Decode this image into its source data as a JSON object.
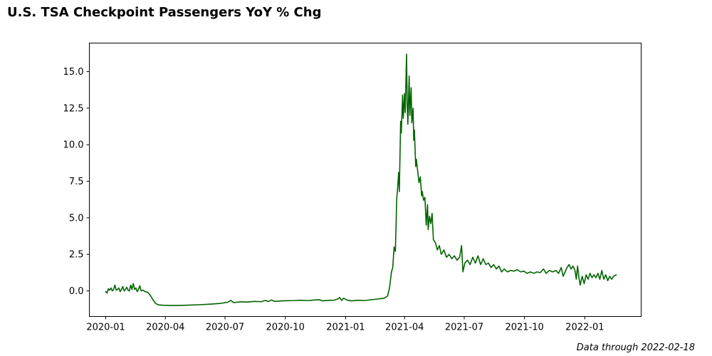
{
  "chart_data": {
    "type": "line",
    "title": "U.S. TSA Checkpoint Passengers YoY % Chg",
    "footnote": "Data through 2022-02-18",
    "xlabel": "",
    "ylabel": "",
    "x_range": [
      "2019-12-07",
      "2022-03-28"
    ],
    "ylim": [
      -1.75,
      16.95
    ],
    "x_ticks": [
      "2020-01",
      "2020-04",
      "2020-07",
      "2020-10",
      "2021-01",
      "2021-04",
      "2021-07",
      "2021-10",
      "2022-01"
    ],
    "y_ticks": [
      "0.0",
      "2.5",
      "5.0",
      "7.5",
      "10.0",
      "12.5",
      "15.0"
    ],
    "grid": false,
    "legend": "none",
    "line_color": "#006400",
    "series": [
      {
        "points": [
          [
            "2020-01-01",
            -0.05
          ],
          [
            "2020-01-03",
            -0.15
          ],
          [
            "2020-01-05",
            0.15
          ],
          [
            "2020-01-07",
            0.05
          ],
          [
            "2020-01-09",
            0.2
          ],
          [
            "2020-01-11",
            0.0
          ],
          [
            "2020-01-13",
            0.1
          ],
          [
            "2020-01-15",
            0.4
          ],
          [
            "2020-01-17",
            0.05
          ],
          [
            "2020-01-19",
            0.1
          ],
          [
            "2020-01-21",
            0.2
          ],
          [
            "2020-01-23",
            -0.05
          ],
          [
            "2020-01-25",
            0.1
          ],
          [
            "2020-01-27",
            0.3
          ],
          [
            "2020-01-29",
            0.0
          ],
          [
            "2020-01-31",
            0.1
          ],
          [
            "2020-02-02",
            0.25
          ],
          [
            "2020-02-04",
            0.05
          ],
          [
            "2020-02-06",
            0.0
          ],
          [
            "2020-02-08",
            0.4
          ],
          [
            "2020-02-10",
            0.1
          ],
          [
            "2020-02-12",
            0.5
          ],
          [
            "2020-02-14",
            0.1
          ],
          [
            "2020-02-16",
            0.2
          ],
          [
            "2020-02-18",
            -0.05
          ],
          [
            "2020-02-20",
            0.1
          ],
          [
            "2020-02-22",
            0.35
          ],
          [
            "2020-02-24",
            0.0
          ],
          [
            "2020-02-27",
            0.05
          ],
          [
            "2020-03-01",
            -0.05
          ],
          [
            "2020-03-05",
            -0.1
          ],
          [
            "2020-03-09",
            -0.3
          ],
          [
            "2020-03-13",
            -0.6
          ],
          [
            "2020-03-17",
            -0.85
          ],
          [
            "2020-03-21",
            -0.95
          ],
          [
            "2020-03-28",
            -0.98
          ],
          [
            "2020-04-10",
            -1.0
          ],
          [
            "2020-04-25",
            -0.99
          ],
          [
            "2020-05-10",
            -0.97
          ],
          [
            "2020-05-25",
            -0.94
          ],
          [
            "2020-06-10",
            -0.9
          ],
          [
            "2020-06-25",
            -0.85
          ],
          [
            "2020-07-05",
            -0.78
          ],
          [
            "2020-07-10",
            -0.65
          ],
          [
            "2020-07-14",
            -0.8
          ],
          [
            "2020-07-25",
            -0.75
          ],
          [
            "2020-08-05",
            -0.76
          ],
          [
            "2020-08-15",
            -0.72
          ],
          [
            "2020-08-25",
            -0.74
          ],
          [
            "2020-09-01",
            -0.65
          ],
          [
            "2020-09-05",
            -0.73
          ],
          [
            "2020-09-10",
            -0.62
          ],
          [
            "2020-09-15",
            -0.72
          ],
          [
            "2020-09-25",
            -0.68
          ],
          [
            "2020-10-05",
            -0.67
          ],
          [
            "2020-10-15",
            -0.66
          ],
          [
            "2020-10-25",
            -0.64
          ],
          [
            "2020-11-05",
            -0.66
          ],
          [
            "2020-11-15",
            -0.62
          ],
          [
            "2020-11-22",
            -0.6
          ],
          [
            "2020-11-26",
            -0.68
          ],
          [
            "2020-12-05",
            -0.65
          ],
          [
            "2020-12-15",
            -0.63
          ],
          [
            "2020-12-20",
            -0.55
          ],
          [
            "2020-12-23",
            -0.45
          ],
          [
            "2020-12-26",
            -0.65
          ],
          [
            "2020-12-29",
            -0.5
          ],
          [
            "2021-01-03",
            -0.62
          ],
          [
            "2021-01-10",
            -0.68
          ],
          [
            "2021-01-20",
            -0.64
          ],
          [
            "2021-01-30",
            -0.66
          ],
          [
            "2021-02-10",
            -0.6
          ],
          [
            "2021-02-20",
            -0.55
          ],
          [
            "2021-03-01",
            -0.5
          ],
          [
            "2021-03-06",
            -0.35
          ],
          [
            "2021-03-09",
            0.2
          ],
          [
            "2021-03-12",
            1.3
          ],
          [
            "2021-03-14",
            1.6
          ],
          [
            "2021-03-16",
            3.0
          ],
          [
            "2021-03-18",
            2.7
          ],
          [
            "2021-03-20",
            6.3
          ],
          [
            "2021-03-21",
            6.8
          ],
          [
            "2021-03-23",
            8.1
          ],
          [
            "2021-03-24",
            6.8
          ],
          [
            "2021-03-26",
            11.6
          ],
          [
            "2021-03-27",
            10.8
          ],
          [
            "2021-03-29",
            13.4
          ],
          [
            "2021-03-30",
            11.8
          ],
          [
            "2021-04-01",
            13.5
          ],
          [
            "2021-04-02",
            12.2
          ],
          [
            "2021-04-04",
            16.2
          ],
          [
            "2021-04-05",
            12.8
          ],
          [
            "2021-04-06",
            11.4
          ],
          [
            "2021-04-08",
            14.7
          ],
          [
            "2021-04-09",
            12.0
          ],
          [
            "2021-04-11",
            13.9
          ],
          [
            "2021-04-12",
            11.5
          ],
          [
            "2021-04-14",
            12.5
          ],
          [
            "2021-04-15",
            10.3
          ],
          [
            "2021-04-16",
            11.0
          ],
          [
            "2021-04-18",
            8.5
          ],
          [
            "2021-04-19",
            9.0
          ],
          [
            "2021-04-21",
            8.2
          ],
          [
            "2021-04-23",
            7.4
          ],
          [
            "2021-04-25",
            7.8
          ],
          [
            "2021-04-27",
            6.5
          ],
          [
            "2021-04-28",
            6.8
          ],
          [
            "2021-04-30",
            6.2
          ],
          [
            "2021-05-02",
            6.4
          ],
          [
            "2021-05-04",
            4.5
          ],
          [
            "2021-05-06",
            5.9
          ],
          [
            "2021-05-07",
            4.2
          ],
          [
            "2021-05-09",
            5.1
          ],
          [
            "2021-05-11",
            4.6
          ],
          [
            "2021-05-13",
            5.3
          ],
          [
            "2021-05-15",
            3.5
          ],
          [
            "2021-05-18",
            3.3
          ],
          [
            "2021-05-21",
            2.8
          ],
          [
            "2021-05-24",
            3.1
          ],
          [
            "2021-05-27",
            2.5
          ],
          [
            "2021-05-31",
            2.8
          ],
          [
            "2021-06-04",
            2.3
          ],
          [
            "2021-06-08",
            2.5
          ],
          [
            "2021-06-12",
            2.2
          ],
          [
            "2021-06-16",
            2.4
          ],
          [
            "2021-06-20",
            2.1
          ],
          [
            "2021-06-24",
            2.3
          ],
          [
            "2021-06-27",
            3.1
          ],
          [
            "2021-06-29",
            1.3
          ],
          [
            "2021-07-02",
            1.9
          ],
          [
            "2021-07-06",
            2.1
          ],
          [
            "2021-07-10",
            1.8
          ],
          [
            "2021-07-14",
            2.3
          ],
          [
            "2021-07-18",
            1.9
          ],
          [
            "2021-07-22",
            2.4
          ],
          [
            "2021-07-26",
            1.8
          ],
          [
            "2021-07-30",
            2.2
          ],
          [
            "2021-08-03",
            1.8
          ],
          [
            "2021-08-07",
            1.9
          ],
          [
            "2021-08-11",
            1.6
          ],
          [
            "2021-08-15",
            1.8
          ],
          [
            "2021-08-19",
            1.5
          ],
          [
            "2021-08-23",
            1.7
          ],
          [
            "2021-08-27",
            1.3
          ],
          [
            "2021-08-31",
            1.5
          ],
          [
            "2021-09-05",
            1.3
          ],
          [
            "2021-09-10",
            1.4
          ],
          [
            "2021-09-15",
            1.35
          ],
          [
            "2021-09-20",
            1.45
          ],
          [
            "2021-09-25",
            1.3
          ],
          [
            "2021-09-30",
            1.35
          ],
          [
            "2021-10-05",
            1.2
          ],
          [
            "2021-10-10",
            1.3
          ],
          [
            "2021-10-15",
            1.2
          ],
          [
            "2021-10-20",
            1.3
          ],
          [
            "2021-10-25",
            1.25
          ],
          [
            "2021-10-30",
            1.5
          ],
          [
            "2021-11-03",
            1.2
          ],
          [
            "2021-11-08",
            1.4
          ],
          [
            "2021-11-13",
            1.3
          ],
          [
            "2021-11-18",
            1.4
          ],
          [
            "2021-11-22",
            1.2
          ],
          [
            "2021-11-26",
            1.6
          ],
          [
            "2021-11-29",
            1.0
          ],
          [
            "2021-12-02",
            1.3
          ],
          [
            "2021-12-05",
            1.6
          ],
          [
            "2021-12-08",
            1.8
          ],
          [
            "2021-12-11",
            1.5
          ],
          [
            "2021-12-14",
            1.7
          ],
          [
            "2021-12-17",
            1.4
          ],
          [
            "2021-12-19",
            0.8
          ],
          [
            "2021-12-21",
            1.7
          ],
          [
            "2021-12-23",
            0.9
          ],
          [
            "2021-12-25",
            0.4
          ],
          [
            "2021-12-28",
            1.0
          ],
          [
            "2021-12-31",
            0.5
          ],
          [
            "2022-01-03",
            1.1
          ],
          [
            "2022-01-06",
            0.8
          ],
          [
            "2022-01-09",
            1.2
          ],
          [
            "2022-01-12",
            0.9
          ],
          [
            "2022-01-15",
            1.1
          ],
          [
            "2022-01-18",
            0.9
          ],
          [
            "2022-01-21",
            1.2
          ],
          [
            "2022-01-24",
            0.8
          ],
          [
            "2022-01-27",
            1.4
          ],
          [
            "2022-01-30",
            0.8
          ],
          [
            "2022-02-02",
            1.1
          ],
          [
            "2022-02-05",
            0.7
          ],
          [
            "2022-02-08",
            1.0
          ],
          [
            "2022-02-11",
            0.8
          ],
          [
            "2022-02-14",
            1.0
          ],
          [
            "2022-02-18",
            1.1
          ]
        ]
      }
    ]
  }
}
